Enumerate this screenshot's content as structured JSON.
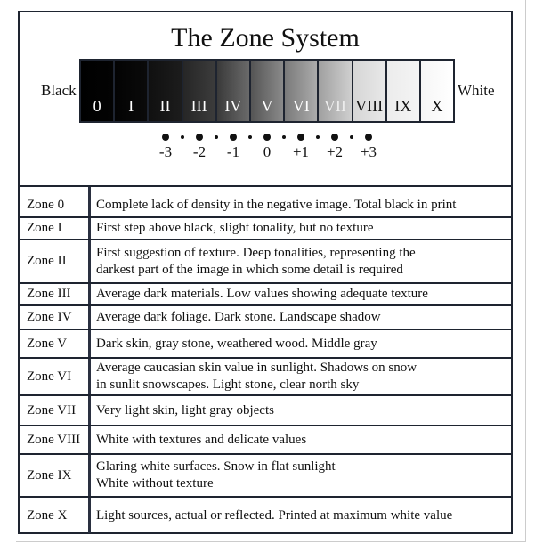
{
  "title": "The Zone System",
  "black_label": "Black",
  "white_label": "White",
  "zones": [
    {
      "label": "0",
      "from": "#000000",
      "to": "#030303",
      "text": "#ffffff"
    },
    {
      "label": "I",
      "from": "#030303",
      "to": "#0a0a0a",
      "text": "#ffffff"
    },
    {
      "label": "II",
      "from": "#101010",
      "to": "#1c1c1c",
      "text": "#ffffff"
    },
    {
      "label": "III",
      "from": "#262626",
      "to": "#3c3c3c",
      "text": "#ffffff"
    },
    {
      "label": "IV",
      "from": "#3a3a3a",
      "to": "#6a6a6a",
      "text": "#ffffff"
    },
    {
      "label": "V",
      "from": "#555555",
      "to": "#8a8a8a",
      "text": "#ffffff"
    },
    {
      "label": "VI",
      "from": "#7a7a7a",
      "to": "#ababab",
      "text": "#ffffff"
    },
    {
      "label": "VII",
      "from": "#a0a0a0",
      "to": "#cfcfcf",
      "text": "#eeeeee"
    },
    {
      "label": "VIII",
      "from": "#d6d6d6",
      "to": "#e8e8e8",
      "text": "#111111"
    },
    {
      "label": "IX",
      "from": "#ececec",
      "to": "#f4f4f4",
      "text": "#111111"
    },
    {
      "label": "X",
      "from": "#f6f6f6",
      "to": "#ffffff",
      "text": "#111111"
    }
  ],
  "stops": [
    "-3",
    "-2",
    "-1",
    "0",
    "+1",
    "+2",
    "+3"
  ],
  "rows": [
    {
      "zone": "Zone 0",
      "desc": "Complete lack of density in the negative image. Total black in print"
    },
    {
      "zone": "Zone I",
      "desc": "First step above black, slight tonality, but no texture"
    },
    {
      "zone": "Zone II",
      "desc": "First suggestion of texture. Deep tonalities, representing the\ndarkest part of the image in which some detail is required"
    },
    {
      "zone": "Zone III",
      "desc": "Average dark materials. Low values showing adequate texture"
    },
    {
      "zone": "Zone IV",
      "desc": "Average dark foliage. Dark stone. Landscape shadow"
    },
    {
      "zone": "Zone V",
      "desc": "Dark skin, gray stone, weathered wood. Middle gray"
    },
    {
      "zone": "Zone VI",
      "desc": "Average caucasian skin value in sunlight. Shadows on snow\nin sunlit snowscapes. Light stone, clear north sky"
    },
    {
      "zone": "Zone VII",
      "desc": "Very light skin, light gray objects"
    },
    {
      "zone": "Zone VIII",
      "desc": "White with textures and delicate values"
    },
    {
      "zone": "Zone IX",
      "desc": "Glaring white surfaces. Snow in flat sunlight\nWhite without texture"
    },
    {
      "zone": "Zone X",
      "desc": "Light sources, actual or reflected. Printed at maximum white value"
    }
  ]
}
